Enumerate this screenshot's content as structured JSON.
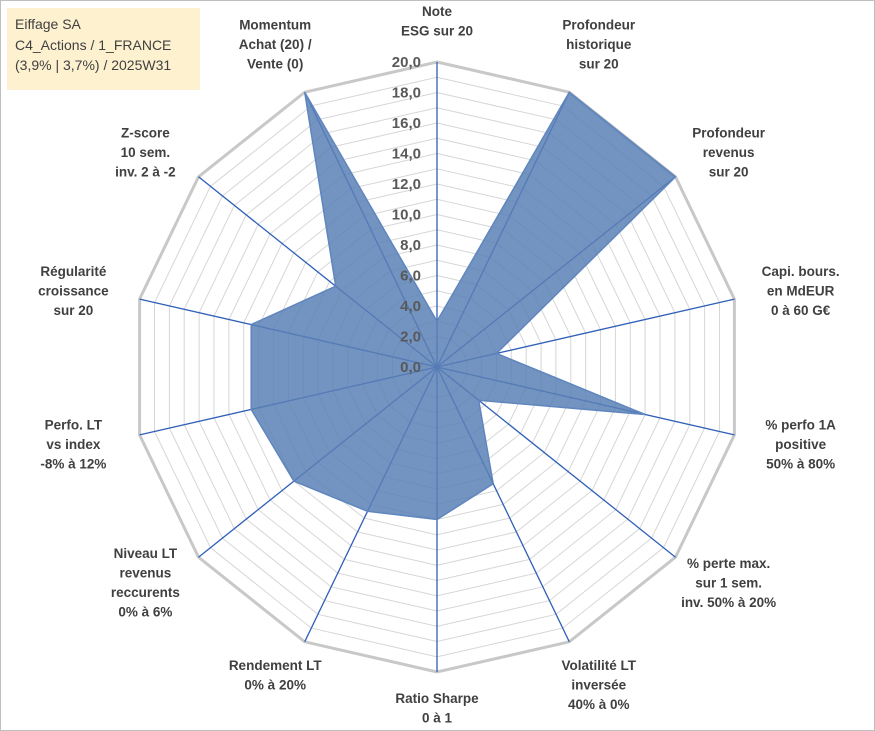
{
  "info_box": {
    "line1": "Eiffage SA",
    "line2": "C4_Actions / 1_FRANCE",
    "line3": "(3,9% | 3,7%) / 2025W31"
  },
  "colors": {
    "series_fill": "#5b80b5",
    "spokes": "#2f5fb8",
    "rings": "#d6d6d6",
    "info_background": "#fdf1d0"
  },
  "chart_data": {
    "type": "radar",
    "rlim": [
      0,
      20
    ],
    "tick_labels": [
      "0,0",
      "2,0",
      "4,0",
      "6,0",
      "8,0",
      "10,0",
      "12,0",
      "14,0",
      "16,0",
      "18,0",
      "20,0"
    ],
    "grid": true,
    "categories": [
      [
        "Note",
        "ESG sur 20"
      ],
      [
        "Profondeur",
        "historique",
        "sur 20"
      ],
      [
        "Profondeur",
        "revenus",
        "sur 20"
      ],
      [
        "Capi. bours.",
        "en MdEUR",
        "0 à 60 G€"
      ],
      [
        "% perfo 1A",
        "positive",
        "50% à 80%"
      ],
      [
        "% perte max.",
        "sur 1 sem.",
        "inv. 50% à 20%"
      ],
      [
        "Volatilité LT",
        "inversée",
        "40% à 0%"
      ],
      [
        "Ratio Sharpe",
        "0 à 1"
      ],
      [
        "Rendement LT",
        "0% à 20%"
      ],
      [
        "Niveau LT",
        "revenus",
        "reccurents",
        "0% à 6%"
      ],
      [
        "Perfo. LT",
        "vs index",
        "-8% à 12%"
      ],
      [
        "Régularité",
        "croissance",
        "sur 20"
      ],
      [
        "Z-score",
        "10 sem.",
        "inv. 2 à -2"
      ],
      [
        "Momentum",
        "Achat (20) /",
        "Vente (0)"
      ]
    ],
    "series": [
      {
        "values": [
          3.0,
          20.0,
          20.0,
          4.0,
          14.0,
          3.5,
          8.5,
          10.0,
          10.5,
          12.0,
          12.5,
          12.5,
          8.5,
          20.0
        ]
      }
    ]
  }
}
